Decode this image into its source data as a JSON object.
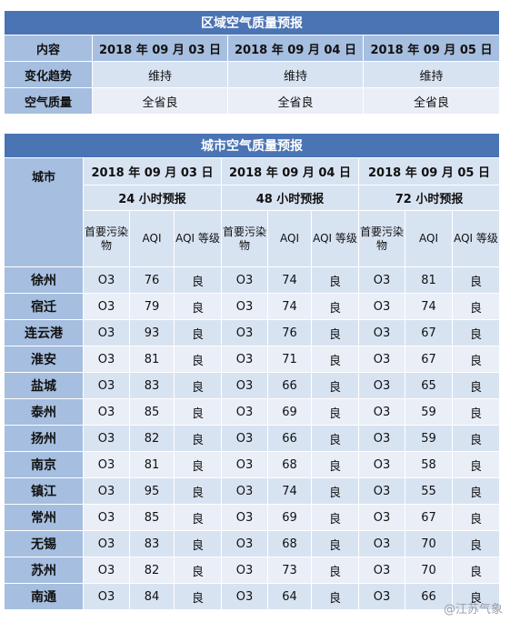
{
  "regional": {
    "title": "区域空气质量预报",
    "header": [
      "内容",
      "2018 年 09 月 03 日",
      "2018 年 09 月 04 日",
      "2018 年 09 月 05 日"
    ],
    "rows": [
      {
        "label": "变化趋势",
        "values": [
          "维持",
          "维持",
          "维持"
        ]
      },
      {
        "label": "空气质量",
        "values": [
          "全省良",
          "全省良",
          "全省良"
        ]
      }
    ]
  },
  "city": {
    "title": "城市空气质量预报",
    "city_label": "城市",
    "dates": [
      "2018 年 09 月 03 日",
      "2018 年 09 月 04 日",
      "2018 年 09 月 05 日"
    ],
    "forecast_labels": [
      "24 小时预报",
      "48 小时预报",
      "72 小时预报"
    ],
    "col_labels": [
      "首要污染物",
      "AQI",
      "AQI 等级"
    ],
    "rows": [
      {
        "city": "徐州",
        "d1": [
          "O3",
          "76",
          "良"
        ],
        "d2": [
          "O3",
          "74",
          "良"
        ],
        "d3": [
          "O3",
          "81",
          "良"
        ]
      },
      {
        "city": "宿迁",
        "d1": [
          "O3",
          "79",
          "良"
        ],
        "d2": [
          "O3",
          "74",
          "良"
        ],
        "d3": [
          "O3",
          "74",
          "良"
        ]
      },
      {
        "city": "连云港",
        "d1": [
          "O3",
          "93",
          "良"
        ],
        "d2": [
          "O3",
          "76",
          "良"
        ],
        "d3": [
          "O3",
          "67",
          "良"
        ]
      },
      {
        "city": "淮安",
        "d1": [
          "O3",
          "81",
          "良"
        ],
        "d2": [
          "O3",
          "71",
          "良"
        ],
        "d3": [
          "O3",
          "67",
          "良"
        ]
      },
      {
        "city": "盐城",
        "d1": [
          "O3",
          "83",
          "良"
        ],
        "d2": [
          "O3",
          "66",
          "良"
        ],
        "d3": [
          "O3",
          "65",
          "良"
        ]
      },
      {
        "city": "泰州",
        "d1": [
          "O3",
          "85",
          "良"
        ],
        "d2": [
          "O3",
          "69",
          "良"
        ],
        "d3": [
          "O3",
          "59",
          "良"
        ]
      },
      {
        "city": "扬州",
        "d1": [
          "O3",
          "82",
          "良"
        ],
        "d2": [
          "O3",
          "66",
          "良"
        ],
        "d3": [
          "O3",
          "59",
          "良"
        ]
      },
      {
        "city": "南京",
        "d1": [
          "O3",
          "81",
          "良"
        ],
        "d2": [
          "O3",
          "68",
          "良"
        ],
        "d3": [
          "O3",
          "58",
          "良"
        ]
      },
      {
        "city": "镇江",
        "d1": [
          "O3",
          "95",
          "良"
        ],
        "d2": [
          "O3",
          "74",
          "良"
        ],
        "d3": [
          "O3",
          "55",
          "良"
        ]
      },
      {
        "city": "常州",
        "d1": [
          "O3",
          "85",
          "良"
        ],
        "d2": [
          "O3",
          "69",
          "良"
        ],
        "d3": [
          "O3",
          "67",
          "良"
        ]
      },
      {
        "city": "无锡",
        "d1": [
          "O3",
          "83",
          "良"
        ],
        "d2": [
          "O3",
          "68",
          "良"
        ],
        "d3": [
          "O3",
          "70",
          "良"
        ]
      },
      {
        "city": "苏州",
        "d1": [
          "O3",
          "82",
          "良"
        ],
        "d2": [
          "O3",
          "73",
          "良"
        ],
        "d3": [
          "O3",
          "70",
          "良"
        ]
      },
      {
        "city": "南通",
        "d1": [
          "O3",
          "84",
          "良"
        ],
        "d2": [
          "O3",
          "64",
          "良"
        ],
        "d3": [
          "O3",
          "66",
          "良"
        ]
      }
    ]
  },
  "watermark": "@江苏气象"
}
